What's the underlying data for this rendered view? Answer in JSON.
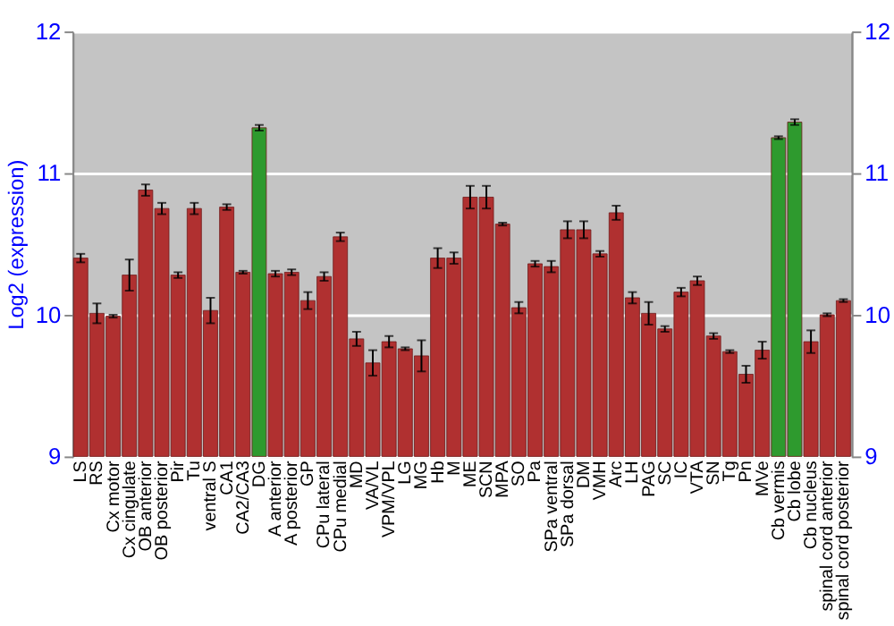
{
  "chart_data": {
    "type": "bar",
    "ylabel": "Log2 (expression)",
    "categories": [
      "LS",
      "RS",
      "Cx motor",
      "Cx cingulate",
      "OB anterior",
      "OB posterior",
      "Pir",
      "Tu",
      "ventral S",
      "CA1",
      "CA2/CA3",
      "DG",
      "A anterior",
      "A posterior",
      "GP",
      "CPu lateral",
      "CPu medial",
      "MD",
      "VA/VL",
      "VPM/VPL",
      "LG",
      "MG",
      "Hb",
      "M",
      "ME",
      "SCN",
      "MPA",
      "SO",
      "Pa",
      "SPa ventral",
      "SPa dorsal",
      "DM",
      "VMH",
      "Arc",
      "LH",
      "PAG",
      "SC",
      "IC",
      "VTA",
      "SN",
      "Tg",
      "Pn",
      "MVe",
      "Cb vermis",
      "Cb lobe",
      "Cb nucleus",
      "spinal cord anterior",
      "spinal cord posterior"
    ],
    "values": [
      10.4,
      10.01,
      9.99,
      10.28,
      10.88,
      10.75,
      10.28,
      10.75,
      10.03,
      10.76,
      10.3,
      11.32,
      10.29,
      10.3,
      10.1,
      10.27,
      10.55,
      9.83,
      9.66,
      9.81,
      9.76,
      9.71,
      10.4,
      10.4,
      10.83,
      10.83,
      10.64,
      10.05,
      10.36,
      10.34,
      10.6,
      10.6,
      10.43,
      10.72,
      10.12,
      10.01,
      9.9,
      10.16,
      10.24,
      9.85,
      9.74,
      9.58,
      9.75,
      11.25,
      11.36,
      9.81,
      10.0,
      10.1
    ],
    "errors": [
      0.03,
      0.07,
      0.01,
      0.11,
      0.04,
      0.04,
      0.02,
      0.04,
      0.09,
      0.02,
      0.01,
      0.02,
      0.02,
      0.02,
      0.06,
      0.03,
      0.03,
      0.05,
      0.09,
      0.04,
      0.01,
      0.11,
      0.07,
      0.04,
      0.08,
      0.08,
      0.01,
      0.04,
      0.02,
      0.04,
      0.06,
      0.06,
      0.02,
      0.05,
      0.04,
      0.08,
      0.02,
      0.03,
      0.03,
      0.02,
      0.01,
      0.06,
      0.06,
      0.01,
      0.02,
      0.08,
      0.01,
      0.01
    ],
    "colors": [
      "#b03030",
      "#b03030",
      "#b03030",
      "#b03030",
      "#b03030",
      "#b03030",
      "#b03030",
      "#b03030",
      "#b03030",
      "#b03030",
      "#b03030",
      "#2e9a2e",
      "#b03030",
      "#b03030",
      "#b03030",
      "#b03030",
      "#b03030",
      "#b03030",
      "#b03030",
      "#b03030",
      "#b03030",
      "#b03030",
      "#b03030",
      "#b03030",
      "#b03030",
      "#b03030",
      "#b03030",
      "#b03030",
      "#b03030",
      "#b03030",
      "#b03030",
      "#b03030",
      "#b03030",
      "#b03030",
      "#b03030",
      "#b03030",
      "#b03030",
      "#b03030",
      "#b03030",
      "#b03030",
      "#b03030",
      "#b03030",
      "#b03030",
      "#2e9a2e",
      "#2e9a2e",
      "#b03030",
      "#b03030",
      "#b03030"
    ],
    "ylim": [
      9,
      12
    ],
    "yticks": [
      9,
      10,
      11,
      12
    ],
    "y2lim": [
      9,
      12
    ],
    "y2ticks": [
      9,
      10,
      11,
      12
    ],
    "grid": "y"
  }
}
